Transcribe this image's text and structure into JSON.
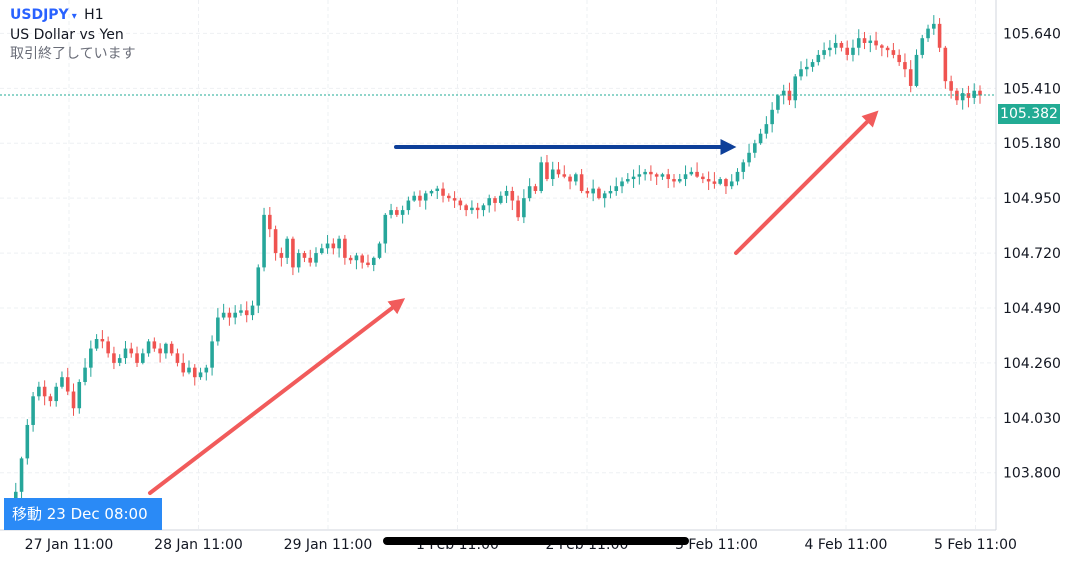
{
  "header": {
    "symbol": "USDJPY",
    "caret": "▾",
    "timeframe": "H1",
    "description": "US Dollar vs Yen",
    "status": "取引終了しています"
  },
  "goto_label": "移動 23 Dec 08:00",
  "last_price": "105.382",
  "colors": {
    "up": "#26a69a",
    "down": "#ef5350",
    "arrow_red": "#f15b5b",
    "arrow_blue": "#0d3f99",
    "last_line": "#22ab94"
  },
  "chart_data": {
    "type": "candlestick",
    "symbol": "USDJPY",
    "timeframe": "H1",
    "ylim": [
      103.56,
      105.78
    ],
    "yticks": [
      "105.640",
      "105.410",
      "105.180",
      "104.950",
      "104.720",
      "104.490",
      "104.260",
      "104.030",
      "103.800"
    ],
    "xticks": [
      "27 Jan 11:00",
      "28 Jan 11:00",
      "29 Jan 11:00",
      "1 Feb 11:00",
      "2 Feb 11:00",
      "3 Feb 11:00",
      "4 Feb 11:00",
      "5 Feb 11:00"
    ],
    "last_price": 105.382,
    "grid": true,
    "closes": [
      103.66,
      103.72,
      103.86,
      104.0,
      104.12,
      104.16,
      104.12,
      104.1,
      104.16,
      104.2,
      104.14,
      104.07,
      104.18,
      104.24,
      104.32,
      104.36,
      104.35,
      104.3,
      104.26,
      104.28,
      104.32,
      104.3,
      104.26,
      104.3,
      104.35,
      104.32,
      104.3,
      104.34,
      104.3,
      104.26,
      104.22,
      104.24,
      104.2,
      104.22,
      104.24,
      104.35,
      104.45,
      104.47,
      104.45,
      104.47,
      104.48,
      104.46,
      104.5,
      104.66,
      104.88,
      104.82,
      104.72,
      104.7,
      104.78,
      104.66,
      104.72,
      104.7,
      104.68,
      104.72,
      104.74,
      104.76,
      104.74,
      104.78,
      104.7,
      104.69,
      104.71,
      104.68,
      104.67,
      104.7,
      104.76,
      104.88,
      104.9,
      104.88,
      104.9,
      104.94,
      104.96,
      104.94,
      104.97,
      104.98,
      104.99,
      104.96,
      104.95,
      104.94,
      104.92,
      104.9,
      104.91,
      104.9,
      104.92,
      104.95,
      104.93,
      104.96,
      104.98,
      104.94,
      104.87,
      104.95,
      105.0,
      104.98,
      105.1,
      105.03,
      105.07,
      105.05,
      105.04,
      105.02,
      105.05,
      104.98,
      104.97,
      104.99,
      104.95,
      104.97,
      104.98,
      105.0,
      105.02,
      105.03,
      105.04,
      105.05,
      105.06,
      105.05,
      105.04,
      105.05,
      105.03,
      105.02,
      105.03,
      105.05,
      105.06,
      105.04,
      105.03,
      105.02,
      105.01,
      105.03,
      105.0,
      105.02,
      105.06,
      105.1,
      105.14,
      105.18,
      105.22,
      105.26,
      105.32,
      105.38,
      105.4,
      105.36,
      105.46,
      105.49,
      105.5,
      105.52,
      105.55,
      105.57,
      105.58,
      105.6,
      105.58,
      105.55,
      105.58,
      105.62,
      105.6,
      105.61,
      105.59,
      105.58,
      105.57,
      105.55,
      105.52,
      105.49,
      105.42,
      105.55,
      105.62,
      105.66,
      105.68,
      105.58,
      105.44,
      105.4,
      105.36,
      105.39,
      105.37,
      105.4,
      105.38
    ]
  },
  "arrows": [
    {
      "color": "#f15b5b",
      "label": ""
    },
    {
      "color": "#0d3f99",
      "label": ""
    },
    {
      "color": "#f15b5b",
      "label": ""
    }
  ]
}
